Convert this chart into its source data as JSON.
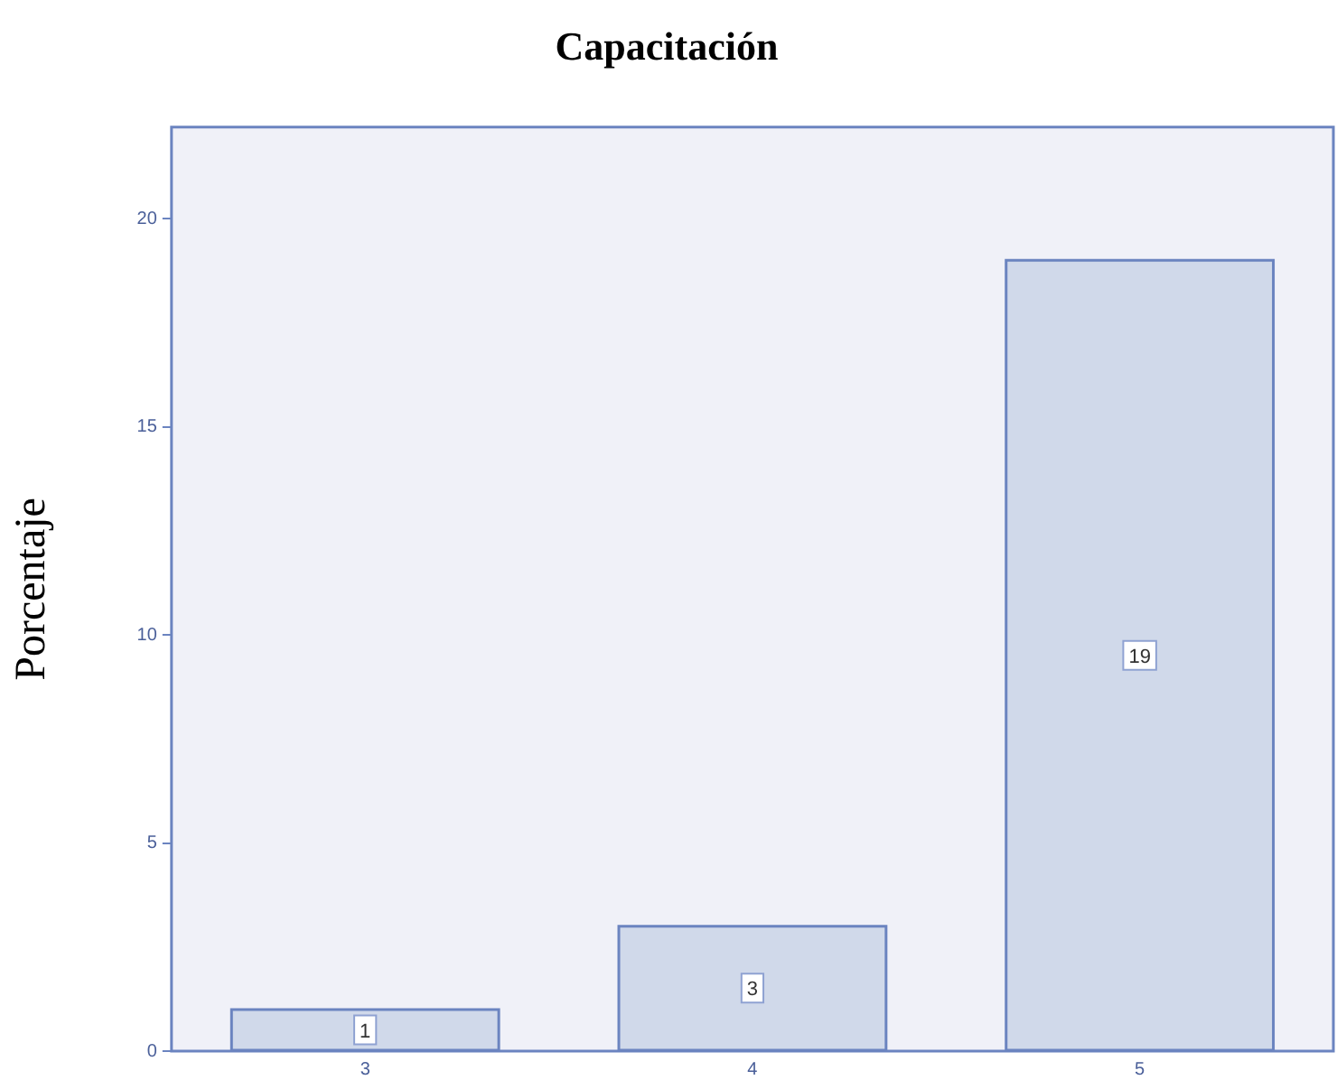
{
  "chart_data": {
    "type": "bar",
    "title": "Capacitación",
    "ylabel": "Porcentaje",
    "categories": [
      "3",
      "4",
      "5"
    ],
    "values": [
      1,
      3,
      19
    ],
    "color": "#d0d9ea",
    "ylim": [
      0,
      22.2
    ],
    "yticks": [
      0,
      5,
      10,
      15,
      20
    ],
    "grid": false,
    "legend": false,
    "data_labels": true
  }
}
